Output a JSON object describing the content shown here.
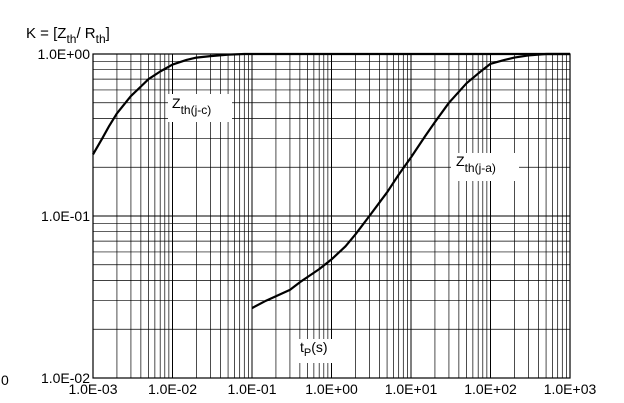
{
  "chart_data": {
    "type": "line",
    "title_text": "K = [Z",
    "title_sub1": "th",
    "title_mid": "/ R",
    "title_sub2": "th",
    "title_end": "]",
    "x_scale": "log",
    "y_scale": "log",
    "xlim": [
      0.001,
      1000
    ],
    "ylim": [
      0.01,
      1
    ],
    "x_tick_labels": [
      "1.0E-03",
      "1.0E-02",
      "1.0E-01",
      "1.0E+00",
      "1.0E+01",
      "1.0E+02",
      "1.0E+03"
    ],
    "y_tick_labels": [
      "1.0E+00",
      "1.0E-01",
      "1.0E-02"
    ],
    "xlabel_main": "t",
    "xlabel_sub": "P",
    "xlabel_end": "(s)",
    "stray_label": "0",
    "grid": true,
    "series": [
      {
        "label_main": "Z",
        "label_sub": "th(j-c)",
        "color": "#000000",
        "points": [
          [
            0.001,
            0.24
          ],
          [
            0.0013,
            0.3
          ],
          [
            0.0016,
            0.36
          ],
          [
            0.002,
            0.43
          ],
          [
            0.003,
            0.55
          ],
          [
            0.004,
            0.63
          ],
          [
            0.005,
            0.7
          ],
          [
            0.007,
            0.78
          ],
          [
            0.01,
            0.86
          ],
          [
            0.015,
            0.92
          ],
          [
            0.02,
            0.95
          ],
          [
            0.03,
            0.97
          ],
          [
            0.05,
            0.99
          ],
          [
            0.08,
            1.0
          ],
          [
            0.2,
            1.0
          ],
          [
            1000,
            1.0
          ]
        ]
      },
      {
        "label_main": "Z",
        "label_sub": "th(j-a)",
        "color": "#000000",
        "points": [
          [
            0.1,
            0.027
          ],
          [
            0.15,
            0.03
          ],
          [
            0.2,
            0.032
          ],
          [
            0.3,
            0.035
          ],
          [
            0.4,
            0.039
          ],
          [
            0.5,
            0.042
          ],
          [
            0.7,
            0.047
          ],
          [
            1.0,
            0.054
          ],
          [
            1.5,
            0.065
          ],
          [
            2,
            0.077
          ],
          [
            3,
            0.1
          ],
          [
            5,
            0.14
          ],
          [
            7,
            0.18
          ],
          [
            10,
            0.23
          ],
          [
            15,
            0.31
          ],
          [
            20,
            0.38
          ],
          [
            30,
            0.5
          ],
          [
            50,
            0.66
          ],
          [
            80,
            0.8
          ],
          [
            100,
            0.87
          ],
          [
            150,
            0.92
          ],
          [
            200,
            0.95
          ],
          [
            300,
            0.98
          ],
          [
            500,
            1.0
          ],
          [
            1000,
            1.0
          ]
        ]
      }
    ]
  }
}
